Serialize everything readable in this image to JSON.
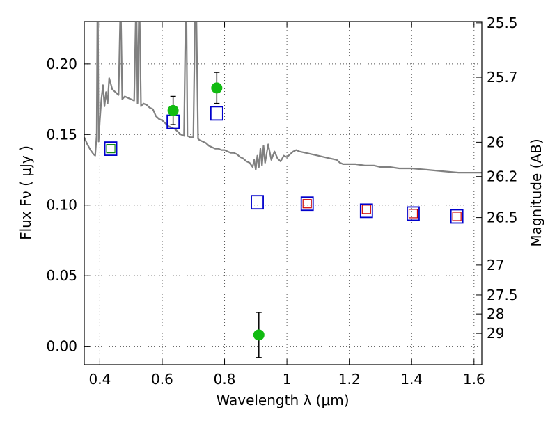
{
  "chart_data": {
    "type": "scatter",
    "xlabel": "Wavelength  λ (μm)",
    "ylabel": "Flux  Fν  ( μJy )",
    "y2label": "Magnitude (AB)",
    "xlim": [
      0.35,
      1.625
    ],
    "ylim": [
      -0.013,
      0.23
    ],
    "grid": true,
    "x_ticks": [
      {
        "v": 0.4,
        "label": "0.4"
      },
      {
        "v": 0.6,
        "label": "0.6"
      },
      {
        "v": 0.8,
        "label": "0.8"
      },
      {
        "v": 1.0,
        "label": "1"
      },
      {
        "v": 1.2,
        "label": "1.2"
      },
      {
        "v": 1.4,
        "label": "1.4"
      },
      {
        "v": 1.6,
        "label": "1.6"
      }
    ],
    "y_ticks": [
      {
        "v": 0.0,
        "label": "0.00"
      },
      {
        "v": 0.05,
        "label": "0.05"
      },
      {
        "v": 0.1,
        "label": "0.10"
      },
      {
        "v": 0.15,
        "label": "0.15"
      },
      {
        "v": 0.2,
        "label": "0.20"
      }
    ],
    "y2_ticks": [
      {
        "mag": 25.5,
        "label": "25.5"
      },
      {
        "mag": 25.7,
        "label": "25.7"
      },
      {
        "mag": 26,
        "label": "26"
      },
      {
        "mag": 26.2,
        "label": "26.2"
      },
      {
        "mag": 26.5,
        "label": "26.5"
      },
      {
        "mag": 27,
        "label": "27"
      },
      {
        "mag": 27.5,
        "label": "27.5"
      },
      {
        "mag": 28,
        "label": "28"
      },
      {
        "mag": 29,
        "label": "29"
      }
    ],
    "colors": {
      "spectrum": "#808080",
      "observed": "#11bb11",
      "model_blue": "#0000cc",
      "model_red": "#cc0000",
      "model_green": "#118811",
      "errorbar": "#000000",
      "grid": "#555555"
    },
    "observed": [
      {
        "x": 0.635,
        "y": 0.167,
        "err": 0.01
      },
      {
        "x": 0.775,
        "y": 0.183,
        "err": 0.011
      },
      {
        "x": 0.91,
        "y": 0.008,
        "err": 0.016
      }
    ],
    "model_blue": [
      {
        "x": 0.435,
        "y": 0.14
      },
      {
        "x": 0.635,
        "y": 0.159
      },
      {
        "x": 0.775,
        "y": 0.165
      },
      {
        "x": 0.905,
        "y": 0.102
      },
      {
        "x": 1.065,
        "y": 0.101
      },
      {
        "x": 1.255,
        "y": 0.096
      },
      {
        "x": 1.405,
        "y": 0.094
      },
      {
        "x": 1.545,
        "y": 0.092
      }
    ],
    "model_inner": [
      {
        "x": 0.435,
        "y": 0.14,
        "color": "green"
      },
      {
        "x": 1.065,
        "y": 0.101,
        "color": "red"
      },
      {
        "x": 1.255,
        "y": 0.097,
        "color": "red"
      },
      {
        "x": 1.405,
        "y": 0.094,
        "color": "red"
      },
      {
        "x": 1.545,
        "y": 0.092,
        "color": "red"
      }
    ],
    "spectrum": [
      [
        0.35,
        0.148
      ],
      [
        0.36,
        0.143
      ],
      [
        0.37,
        0.139
      ],
      [
        0.38,
        0.136
      ],
      [
        0.385,
        0.135
      ],
      [
        0.39,
        0.15
      ],
      [
        0.392,
        0.23
      ],
      [
        0.394,
        0.23
      ],
      [
        0.396,
        0.145
      ],
      [
        0.4,
        0.16
      ],
      [
        0.405,
        0.175
      ],
      [
        0.41,
        0.185
      ],
      [
        0.415,
        0.17
      ],
      [
        0.42,
        0.18
      ],
      [
        0.425,
        0.172
      ],
      [
        0.43,
        0.19
      ],
      [
        0.44,
        0.182
      ],
      [
        0.45,
        0.18
      ],
      [
        0.46,
        0.178
      ],
      [
        0.465,
        0.23
      ],
      [
        0.468,
        0.23
      ],
      [
        0.472,
        0.175
      ],
      [
        0.48,
        0.177
      ],
      [
        0.49,
        0.176
      ],
      [
        0.5,
        0.175
      ],
      [
        0.51,
        0.174
      ],
      [
        0.515,
        0.23
      ],
      [
        0.518,
        0.23
      ],
      [
        0.521,
        0.172
      ],
      [
        0.525,
        0.23
      ],
      [
        0.528,
        0.23
      ],
      [
        0.532,
        0.17
      ],
      [
        0.54,
        0.172
      ],
      [
        0.55,
        0.171
      ],
      [
        0.56,
        0.169
      ],
      [
        0.57,
        0.168
      ],
      [
        0.58,
        0.163
      ],
      [
        0.59,
        0.161
      ],
      [
        0.6,
        0.16
      ],
      [
        0.61,
        0.158
      ],
      [
        0.62,
        0.156
      ],
      [
        0.63,
        0.155
      ],
      [
        0.64,
        0.154
      ],
      [
        0.65,
        0.152
      ],
      [
        0.66,
        0.15
      ],
      [
        0.67,
        0.149
      ],
      [
        0.675,
        0.23
      ],
      [
        0.678,
        0.23
      ],
      [
        0.681,
        0.149
      ],
      [
        0.69,
        0.148
      ],
      [
        0.7,
        0.148
      ],
      [
        0.705,
        0.23
      ],
      [
        0.71,
        0.23
      ],
      [
        0.715,
        0.147
      ],
      [
        0.72,
        0.146
      ],
      [
        0.73,
        0.145
      ],
      [
        0.74,
        0.144
      ],
      [
        0.75,
        0.142
      ],
      [
        0.76,
        0.141
      ],
      [
        0.77,
        0.14
      ],
      [
        0.78,
        0.14
      ],
      [
        0.79,
        0.139
      ],
      [
        0.8,
        0.139
      ],
      [
        0.81,
        0.138
      ],
      [
        0.82,
        0.137
      ],
      [
        0.83,
        0.137
      ],
      [
        0.84,
        0.136
      ],
      [
        0.85,
        0.134
      ],
      [
        0.86,
        0.133
      ],
      [
        0.87,
        0.131
      ],
      [
        0.88,
        0.13
      ],
      [
        0.89,
        0.127
      ],
      [
        0.895,
        0.132
      ],
      [
        0.9,
        0.125
      ],
      [
        0.905,
        0.135
      ],
      [
        0.91,
        0.127
      ],
      [
        0.915,
        0.14
      ],
      [
        0.92,
        0.128
      ],
      [
        0.925,
        0.142
      ],
      [
        0.93,
        0.13
      ],
      [
        0.94,
        0.143
      ],
      [
        0.95,
        0.132
      ],
      [
        0.96,
        0.138
      ],
      [
        0.97,
        0.133
      ],
      [
        0.98,
        0.131
      ],
      [
        0.99,
        0.135
      ],
      [
        1.0,
        0.134
      ],
      [
        1.01,
        0.136
      ],
      [
        1.02,
        0.138
      ],
      [
        1.03,
        0.139
      ],
      [
        1.04,
        0.138
      ],
      [
        1.06,
        0.137
      ],
      [
        1.08,
        0.136
      ],
      [
        1.1,
        0.135
      ],
      [
        1.12,
        0.134
      ],
      [
        1.14,
        0.133
      ],
      [
        1.16,
        0.132
      ],
      [
        1.17,
        0.13
      ],
      [
        1.18,
        0.129
      ],
      [
        1.2,
        0.129
      ],
      [
        1.22,
        0.129
      ],
      [
        1.25,
        0.128
      ],
      [
        1.28,
        0.128
      ],
      [
        1.3,
        0.127
      ],
      [
        1.33,
        0.127
      ],
      [
        1.36,
        0.126
      ],
      [
        1.4,
        0.126
      ],
      [
        1.45,
        0.125
      ],
      [
        1.5,
        0.124
      ],
      [
        1.55,
        0.123
      ],
      [
        1.6,
        0.123
      ],
      [
        1.625,
        0.123
      ]
    ]
  }
}
